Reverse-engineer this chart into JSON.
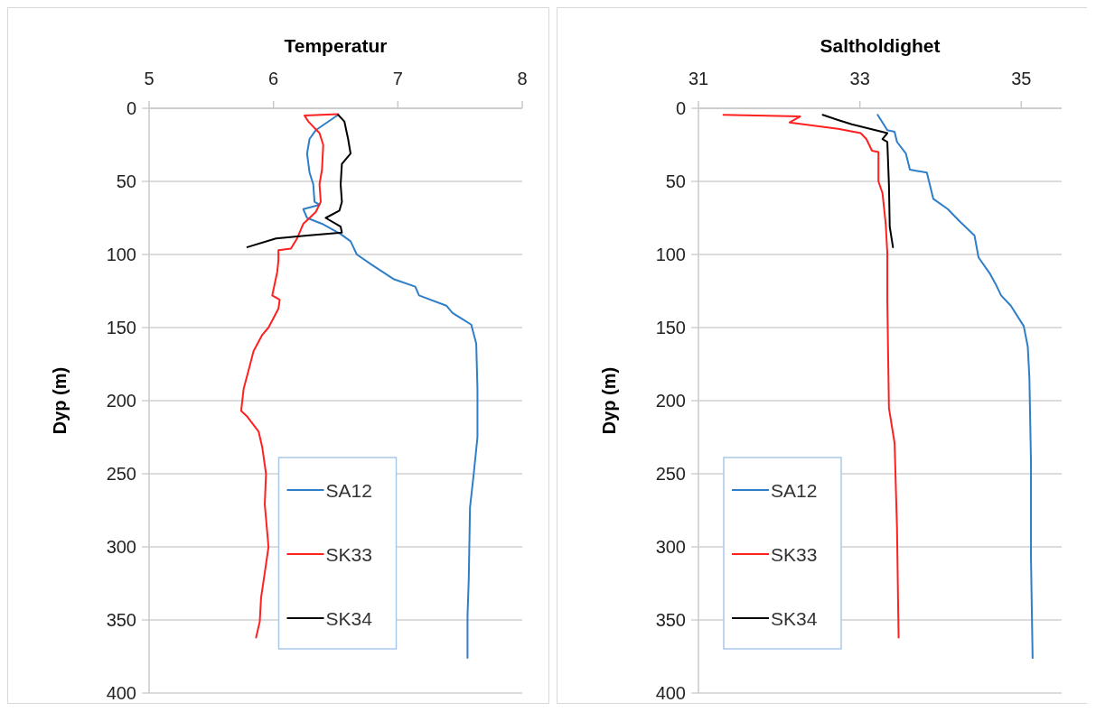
{
  "chart_data": [
    {
      "type": "line",
      "title": "Temperatur",
      "ylabel": "Dyp (m)",
      "xlim": [
        5,
        8
      ],
      "xticks": [
        5,
        6,
        7,
        8
      ],
      "ylim": [
        400,
        0
      ],
      "yticks": [
        0,
        50,
        100,
        150,
        200,
        250,
        300,
        350,
        400
      ],
      "grid": "y",
      "legend": "bottom",
      "series": [
        {
          "name": "SA12",
          "color": "#2e7fc7",
          "x": [
            6.52,
            6.34,
            6.29,
            6.27,
            6.29,
            6.32,
            6.33,
            6.37,
            6.24,
            6.27,
            6.39,
            6.54,
            6.62,
            6.67,
            6.79,
            6.97,
            7.14,
            7.17,
            7.39,
            7.44,
            7.59,
            7.63,
            7.64,
            7.64,
            7.61,
            7.58,
            7.57,
            7.56,
            7.56
          ],
          "values": [
            4.5,
            15,
            21,
            31,
            44,
            52,
            64,
            66,
            69,
            75,
            79,
            86,
            91,
            100,
            107,
            117,
            122,
            128,
            135,
            140,
            148,
            161,
            192,
            225,
            250,
            273,
            322,
            347,
            376
          ]
        },
        {
          "name": "SK33",
          "color": "#ff2020",
          "x": [
            6.52,
            6.25,
            6.28,
            6.37,
            6.4,
            6.39,
            6.37,
            6.38,
            6.34,
            6.29,
            6.24,
            6.19,
            6.14,
            6.04,
            6.04,
            6.03,
            5.99,
            6.05,
            6.04,
            5.96,
            5.91,
            5.84,
            5.81,
            5.76,
            5.74,
            5.79,
            5.88,
            5.91,
            5.94,
            5.93,
            5.96,
            5.94,
            5.9,
            5.89,
            5.86
          ],
          "values": [
            4,
            5,
            9,
            17,
            25,
            42,
            52,
            64,
            71,
            75,
            79,
            89,
            96,
            97,
            104,
            112,
            128,
            131,
            137,
            150,
            155,
            166,
            176,
            192,
            207,
            211,
            221,
            232,
            250,
            271,
            300,
            312,
            335,
            351,
            362
          ]
        },
        {
          "name": "SK34",
          "color": "#000000",
          "x": [
            6.52,
            6.57,
            6.6,
            6.62,
            6.55,
            6.54,
            6.55,
            6.53,
            6.42,
            6.54,
            6.55,
            6.27,
            6.02,
            5.79
          ],
          "values": [
            4.5,
            9,
            21,
            31,
            38,
            52,
            64,
            70,
            75,
            81,
            85,
            87,
            89,
            95
          ]
        }
      ]
    },
    {
      "type": "line",
      "title": "Saltholdighet",
      "ylabel": "Dyp (m)",
      "xlim": [
        31,
        35.5
      ],
      "xticks": [
        31,
        33,
        35
      ],
      "ylim": [
        400,
        0
      ],
      "yticks": [
        0,
        50,
        100,
        150,
        200,
        250,
        300,
        350,
        400
      ],
      "grid": "y",
      "legend": "bottom left",
      "series": [
        {
          "name": "SA12",
          "color": "#2e7fc7",
          "x": [
            33.22,
            33.34,
            33.43,
            33.46,
            33.57,
            33.62,
            33.83,
            33.91,
            34.09,
            34.23,
            34.42,
            34.47,
            34.61,
            34.68,
            34.75,
            34.87,
            35.03,
            35.08,
            35.1,
            35.12,
            35.12,
            35.14
          ],
          "values": [
            4.5,
            15,
            16,
            23,
            31,
            42,
            44,
            62,
            69,
            77,
            87,
            102,
            113,
            120,
            128,
            135,
            149,
            163,
            184,
            242,
            308,
            376
          ]
        },
        {
          "name": "SK33",
          "color": "#ff2020",
          "x": [
            31.31,
            32.26,
            32.13,
            32.73,
            33.01,
            33.08,
            33.15,
            33.23,
            33.23,
            33.28,
            33.32,
            33.34,
            33.34,
            33.36,
            33.43,
            33.46,
            33.48
          ],
          "values": [
            4.5,
            5.6,
            9.7,
            14,
            17,
            21,
            29,
            30,
            50,
            58,
            79,
            99,
            132,
            205,
            229,
            287,
            362
          ]
        },
        {
          "name": "SK34",
          "color": "#000000",
          "x": [
            32.54,
            32.73,
            32.9,
            33.34,
            33.28,
            33.34,
            33.36,
            33.37,
            33.41
          ],
          "values": [
            4.5,
            8,
            11,
            17,
            21,
            23,
            52,
            81,
            95
          ]
        }
      ]
    }
  ]
}
